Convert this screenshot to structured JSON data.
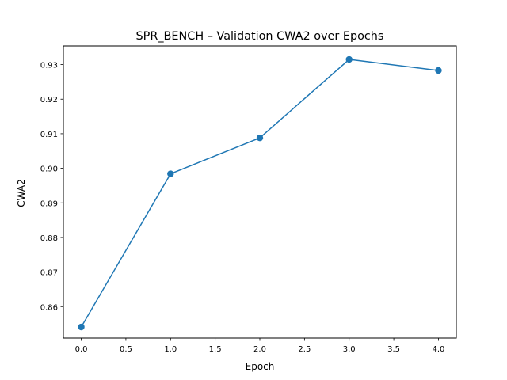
{
  "chart_data": {
    "type": "line",
    "title": "SPR_BENCH – Validation CWA2 over Epochs",
    "xlabel": "Epoch",
    "ylabel": "CWA2",
    "xlim": [
      -0.2,
      4.2
    ],
    "ylim": [
      0.8509,
      0.9354
    ],
    "x_ticks": [
      0.0,
      0.5,
      1.0,
      1.5,
      2.0,
      2.5,
      3.0,
      3.5,
      4.0
    ],
    "x_tick_labels": [
      "0.0",
      "0.5",
      "1.0",
      "1.5",
      "2.0",
      "2.5",
      "3.0",
      "3.5",
      "4.0"
    ],
    "y_ticks": [
      0.86,
      0.87,
      0.88,
      0.89,
      0.9,
      0.91,
      0.92,
      0.93
    ],
    "y_tick_labels": [
      "0.86",
      "0.87",
      "0.88",
      "0.89",
      "0.90",
      "0.91",
      "0.92",
      "0.93"
    ],
    "grid": false,
    "legend": "none",
    "series": [
      {
        "color": "#1f77b4",
        "marker": "circle",
        "x": [
          0,
          1,
          2,
          3,
          4
        ],
        "y": [
          0.8541,
          0.8984,
          0.9088,
          0.9315,
          0.9283
        ]
      }
    ]
  }
}
